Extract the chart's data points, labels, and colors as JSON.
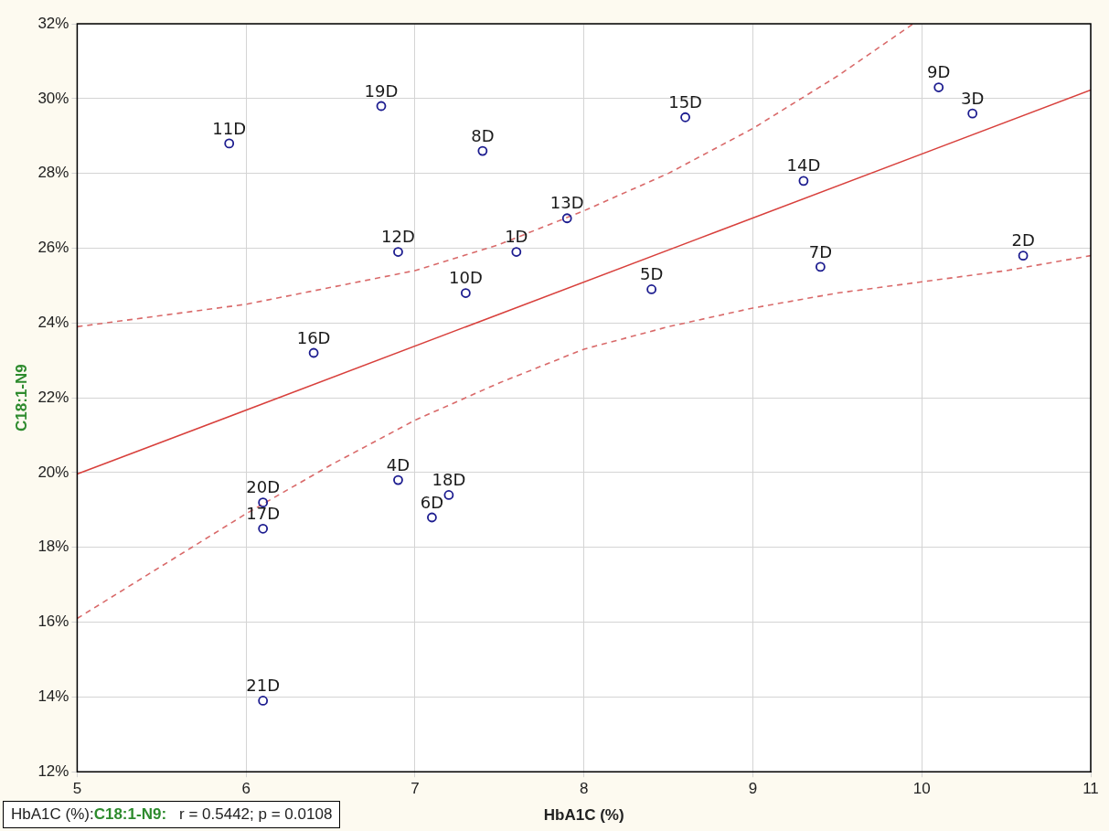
{
  "chart_data": {
    "type": "scatter",
    "xlabel": "HbA1C (%)",
    "ylabel": "C18:1-N9",
    "xlim": [
      5,
      11
    ],
    "xticks": [
      5,
      6,
      7,
      8,
      9,
      10,
      11
    ],
    "ylim": [
      12,
      32
    ],
    "yticks": [
      {
        "value": 12,
        "label": "12%"
      },
      {
        "value": 14,
        "label": "14%"
      },
      {
        "value": 16,
        "label": "16%"
      },
      {
        "value": 18,
        "label": "18%"
      },
      {
        "value": 20,
        "label": "20%"
      },
      {
        "value": 22,
        "label": "22%"
      },
      {
        "value": 24,
        "label": "24%"
      },
      {
        "value": 26,
        "label": "26%"
      },
      {
        "value": 28,
        "label": "28%"
      },
      {
        "value": 30,
        "label": "30%"
      },
      {
        "value": 32,
        "label": "32%"
      }
    ],
    "grid": true,
    "legend": false,
    "marker": "circle",
    "series": [
      {
        "type": "scatter",
        "color": "#1c1c8f",
        "x": [
          5.9,
          6.8,
          7.4,
          7.9,
          6.9,
          7.6,
          7.3,
          6.4,
          8.6,
          10.1,
          10.3,
          9.3,
          10.6,
          9.4,
          8.4,
          6.1,
          6.1,
          6.9,
          7.2,
          7.1,
          6.1
        ],
        "values": [
          28.8,
          29.8,
          28.6,
          26.8,
          25.9,
          25.9,
          24.8,
          23.2,
          29.5,
          30.3,
          29.6,
          27.8,
          25.8,
          25.5,
          24.9,
          19.2,
          18.5,
          19.8,
          19.4,
          18.8,
          13.9
        ]
      },
      {
        "type": "line",
        "marker": "none",
        "line_style": "solid",
        "color": "#d8403c",
        "x": [
          5,
          11
        ],
        "values": [
          19.96,
          30.23
        ]
      },
      {
        "type": "line",
        "marker": "none",
        "line_style": "dashed",
        "color": "#d96a6a",
        "x": [
          5,
          6,
          7,
          7.5,
          8,
          8.5,
          9,
          9.5,
          9.95
        ],
        "values": [
          23.9,
          24.5,
          25.4,
          26.1,
          27.0,
          28.0,
          29.2,
          30.6,
          32
        ]
      },
      {
        "type": "line",
        "marker": "none",
        "line_style": "dashed",
        "color": "#d96a6a",
        "x": [
          5,
          6,
          6.5,
          7,
          7.5,
          8,
          8.5,
          9,
          9.5,
          10,
          10.5,
          11
        ],
        "values": [
          16.1,
          18.9,
          20.2,
          21.4,
          22.4,
          23.3,
          23.9,
          24.4,
          24.8,
          25.1,
          25.4,
          25.8
        ]
      }
    ],
    "annotations": [
      {
        "text": "11D",
        "x": 5.9,
        "y": 28.8
      },
      {
        "text": "19D",
        "x": 6.8,
        "y": 29.8
      },
      {
        "text": "8D",
        "x": 7.4,
        "y": 28.6
      },
      {
        "text": "13D",
        "x": 7.9,
        "y": 26.8
      },
      {
        "text": "12D",
        "x": 6.9,
        "y": 25.9
      },
      {
        "text": "1D",
        "x": 7.6,
        "y": 25.9
      },
      {
        "text": "10D",
        "x": 7.3,
        "y": 24.8
      },
      {
        "text": "16D",
        "x": 6.4,
        "y": 23.2
      },
      {
        "text": "15D",
        "x": 8.6,
        "y": 29.5
      },
      {
        "text": "9D",
        "x": 10.1,
        "y": 30.3
      },
      {
        "text": "3D",
        "x": 10.3,
        "y": 29.6
      },
      {
        "text": "14D",
        "x": 9.3,
        "y": 27.8
      },
      {
        "text": "2D",
        "x": 10.6,
        "y": 25.8
      },
      {
        "text": "7D",
        "x": 9.4,
        "y": 25.5
      },
      {
        "text": "5D",
        "x": 8.4,
        "y": 24.9
      },
      {
        "text": "20D",
        "x": 6.1,
        "y": 19.2
      },
      {
        "text": "17D",
        "x": 6.1,
        "y": 18.5
      },
      {
        "text": "4D",
        "x": 6.9,
        "y": 19.8
      },
      {
        "text": "18D",
        "x": 7.2,
        "y": 19.4
      },
      {
        "text": "6D",
        "x": 7.1,
        "y": 18.8
      },
      {
        "text": "21D",
        "x": 6.1,
        "y": 13.9
      },
      "HbA1C (%):",
      "C18:1-N9:",
      "r = 0.5442; p = 0.0108"
    ]
  }
}
